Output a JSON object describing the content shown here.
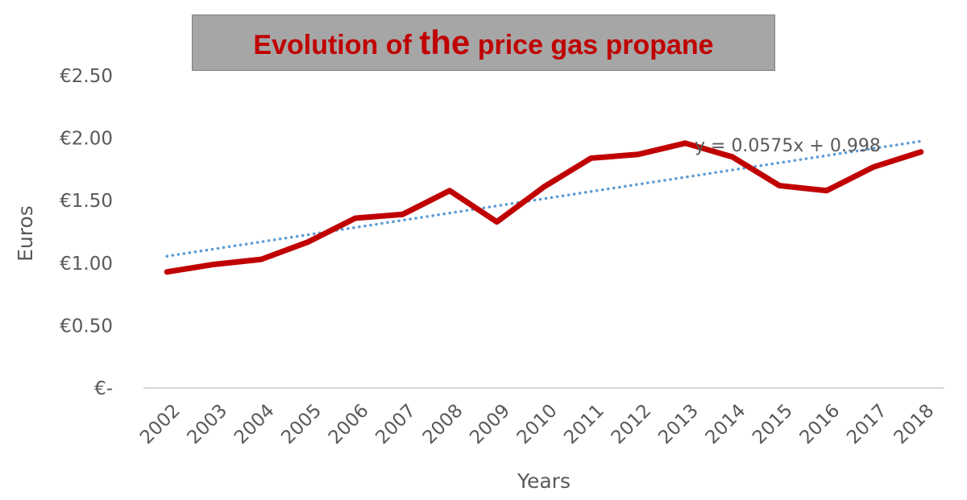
{
  "chart_data": {
    "type": "line",
    "title": {
      "before": "Evolution of ",
      "emphasis": "the",
      "after": " price gas propane"
    },
    "xlabel": "Years",
    "ylabel": "Euros",
    "ylim": [
      0,
      2.5
    ],
    "y_ticks": [
      {
        "value": 0,
        "label": "€-"
      },
      {
        "value": 0.5,
        "label": "€0.50"
      },
      {
        "value": 1.0,
        "label": "€1.00"
      },
      {
        "value": 1.5,
        "label": "€1.50"
      },
      {
        "value": 2.0,
        "label": "€2.00"
      },
      {
        "value": 2.5,
        "label": "€2.50"
      }
    ],
    "categories": [
      "2002",
      "2003",
      "2004",
      "2005",
      "2006",
      "2007",
      "2008",
      "2009",
      "2010",
      "2011",
      "2012",
      "2013",
      "2014",
      "2015",
      "2016",
      "2017",
      "2018"
    ],
    "series": [
      {
        "values": [
          0.93,
          0.99,
          1.03,
          1.17,
          1.36,
          1.39,
          1.58,
          1.33,
          1.61,
          1.84,
          1.87,
          1.96,
          1.85,
          1.62,
          1.58,
          1.77,
          1.89
        ],
        "color": "#c00000",
        "style": "solid"
      }
    ],
    "trendline": {
      "type": "linear",
      "slope": 0.0575,
      "intercept": 0.998,
      "label": "y = 0.0575x + 0.998",
      "color": "#5b9bd5",
      "style": "dotted"
    },
    "grid": false,
    "legend": "none"
  }
}
